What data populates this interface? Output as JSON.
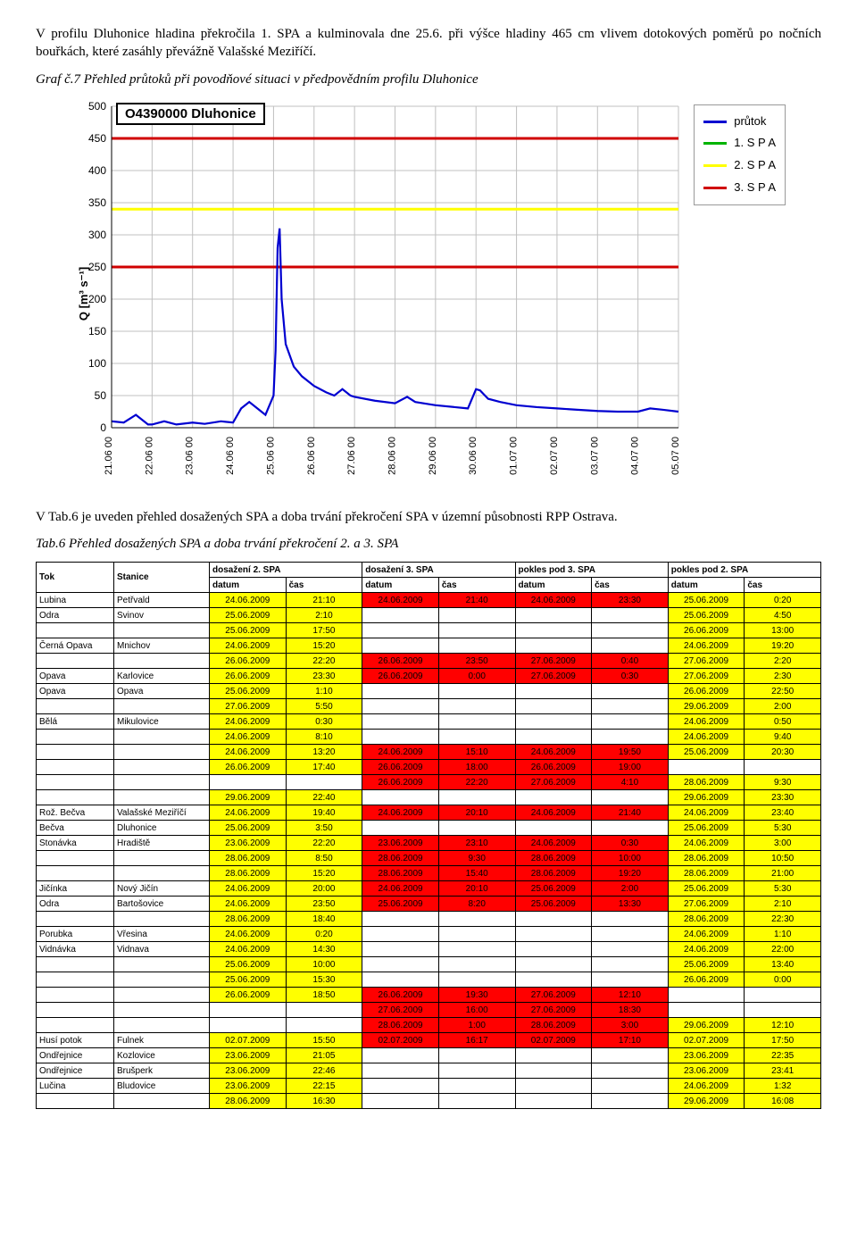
{
  "intro_para": "V profilu Dluhonice hladina překročila 1. SPA a kulminovala dne 25.6. při výšce hladiny 465 cm vlivem dotokových poměrů po nočních bouřkách, které zasáhly převážně Valašské Meziříčí.",
  "chart_caption": "Graf č.7 Přehled průtoků při povodňové situaci v předpovědním profilu Dluhonice",
  "mid_para": "V Tab.6 je uveden přehled dosažených SPA a doba trvání překročení SPA v územní působnosti RPP Ostrava.",
  "table_caption": "Tab.6  Přehled dosažených SPA a doba trvání překročení  2. a 3. SPA",
  "chart": {
    "title": "O4390000 Dluhonice",
    "ylabel": "Q [m³ s⁻¹]",
    "ylim": [
      0,
      500
    ],
    "ytick_step": 50,
    "x_labels": [
      "21.06 00",
      "22.06 00",
      "23.06 00",
      "24.06 00",
      "25.06 00",
      "26.06 00",
      "27.06 00",
      "28.06 00",
      "29.06 00",
      "30.06 00",
      "01.07 00",
      "02.07 00",
      "03.07 00",
      "04.07 00",
      "05.07 00"
    ],
    "spa1": 340,
    "spa2": 450,
    "spa3": 250,
    "colors": {
      "prutok": "#0000d0",
      "spa1": "#00b300",
      "spa2": "#ffff00",
      "spa3": "#d00000",
      "grid": "#c0c0c0",
      "axis": "#000000",
      "bg": "#ffffff"
    },
    "legend": {
      "prutok": "průtok",
      "spa1": "1. S P A",
      "spa2": "2. S P A",
      "spa3": "3. S P A"
    },
    "flow_series": [
      [
        0,
        10
      ],
      [
        0.3,
        8
      ],
      [
        0.6,
        20
      ],
      [
        0.9,
        5
      ],
      [
        1.0,
        5
      ],
      [
        1.3,
        10
      ],
      [
        1.6,
        5
      ],
      [
        2.0,
        8
      ],
      [
        2.3,
        6
      ],
      [
        2.7,
        10
      ],
      [
        3.0,
        8
      ],
      [
        3.2,
        30
      ],
      [
        3.4,
        40
      ],
      [
        3.6,
        30
      ],
      [
        3.8,
        20
      ],
      [
        4.0,
        50
      ],
      [
        4.05,
        120
      ],
      [
        4.1,
        280
      ],
      [
        4.15,
        310
      ],
      [
        4.2,
        200
      ],
      [
        4.3,
        130
      ],
      [
        4.5,
        95
      ],
      [
        4.7,
        80
      ],
      [
        5.0,
        65
      ],
      [
        5.3,
        55
      ],
      [
        5.5,
        50
      ],
      [
        5.7,
        60
      ],
      [
        5.9,
        50
      ],
      [
        6.0,
        48
      ],
      [
        6.5,
        42
      ],
      [
        7.0,
        38
      ],
      [
        7.3,
        48
      ],
      [
        7.5,
        40
      ],
      [
        8.0,
        35
      ],
      [
        8.8,
        30
      ],
      [
        9.0,
        60
      ],
      [
        9.1,
        58
      ],
      [
        9.3,
        45
      ],
      [
        9.6,
        40
      ],
      [
        10.0,
        35
      ],
      [
        10.5,
        32
      ],
      [
        11.0,
        30
      ],
      [
        11.5,
        28
      ],
      [
        12.0,
        26
      ],
      [
        12.5,
        25
      ],
      [
        13.0,
        25
      ],
      [
        13.3,
        30
      ],
      [
        13.6,
        28
      ],
      [
        14.0,
        25
      ]
    ]
  },
  "table": {
    "headers": {
      "tok": "Tok",
      "stanice": "Stanice",
      "d2": "dosažení 2. SPA",
      "d3": "dosažení 3. SPA",
      "p3": "pokles pod 3. SPA",
      "p2": "pokles pod 2. SPA",
      "datum": "datum",
      "cas": "čas"
    },
    "colors": {
      "yellow": "#ffff00",
      "red": "#ff0000",
      "none": "#ffffff"
    },
    "rows": [
      {
        "tok": "Lubina",
        "stn": "Petřvald",
        "d2": [
          "24.06.2009",
          "21:10"
        ],
        "d3": [
          "24.06.2009",
          "21:40"
        ],
        "p3": [
          "24.06.2009",
          "23:30"
        ],
        "p2": [
          "25.06.2009",
          "0:20"
        ]
      },
      {
        "tok": "Odra",
        "stn": "Svinov",
        "d2": [
          "25.06.2009",
          "2:10"
        ],
        "d3": [
          "",
          ""
        ],
        "p3": [
          "",
          ""
        ],
        "p2": [
          "25.06.2009",
          "4:50"
        ]
      },
      {
        "tok": "",
        "stn": "",
        "d2": [
          "25.06.2009",
          "17:50"
        ],
        "d3": [
          "",
          ""
        ],
        "p3": [
          "",
          ""
        ],
        "p2": [
          "26.06.2009",
          "13:00"
        ]
      },
      {
        "tok": "Černá Opava",
        "stn": "Mnichov",
        "d2": [
          "24.06.2009",
          "15:20"
        ],
        "d3": [
          "",
          ""
        ],
        "p3": [
          "",
          ""
        ],
        "p2": [
          "24.06.2009",
          "19:20"
        ]
      },
      {
        "tok": "",
        "stn": "",
        "d2": [
          "26.06.2009",
          "22:20"
        ],
        "d3": [
          "26.06.2009",
          "23:50"
        ],
        "p3": [
          "27.06.2009",
          "0:40"
        ],
        "p2": [
          "27.06.2009",
          "2:20"
        ]
      },
      {
        "tok": "Opava",
        "stn": "Karlovice",
        "d2": [
          "26.06.2009",
          "23:30"
        ],
        "d3": [
          "26.06.2009",
          "0:00"
        ],
        "p3": [
          "27.06.2009",
          "0:30"
        ],
        "p2": [
          "27.06.2009",
          "2:30"
        ]
      },
      {
        "tok": "Opava",
        "stn": "Opava",
        "d2": [
          "25.06.2009",
          "1:10"
        ],
        "d3": [
          "",
          ""
        ],
        "p3": [
          "",
          ""
        ],
        "p2": [
          "26.06.2009",
          "22:50"
        ]
      },
      {
        "tok": "",
        "stn": "",
        "d2": [
          "27.06.2009",
          "5:50"
        ],
        "d3": [
          "",
          ""
        ],
        "p3": [
          "",
          ""
        ],
        "p2": [
          "29.06.2009",
          "2:00"
        ]
      },
      {
        "tok": "Bělá",
        "stn": "Mikulovice",
        "d2": [
          "24.06.2009",
          "0:30"
        ],
        "d3": [
          "",
          ""
        ],
        "p3": [
          "",
          ""
        ],
        "p2": [
          "24.06.2009",
          "0:50"
        ]
      },
      {
        "tok": "",
        "stn": "",
        "d2": [
          "24.06.2009",
          "8:10"
        ],
        "d3": [
          "",
          ""
        ],
        "p3": [
          "",
          ""
        ],
        "p2": [
          "24.06.2009",
          "9:40"
        ]
      },
      {
        "tok": "",
        "stn": "",
        "d2": [
          "24.06.2009",
          "13:20"
        ],
        "d3": [
          "24.06.2009",
          "15:10"
        ],
        "p3": [
          "24.06.2009",
          "19:50"
        ],
        "p2": [
          "25.06.2009",
          "20:30"
        ]
      },
      {
        "tok": "",
        "stn": "",
        "d2": [
          "26.06.2009",
          "17:40"
        ],
        "d3": [
          "26.06.2009",
          "18:00"
        ],
        "p3": [
          "26.06.2009",
          "19:00"
        ],
        "p2": [
          "",
          ""
        ]
      },
      {
        "tok": "",
        "stn": "",
        "d2": [
          "",
          ""
        ],
        "d3": [
          "26.06.2009",
          "22:20"
        ],
        "p3": [
          "27.06.2009",
          "4:10"
        ],
        "p2": [
          "28.06.2009",
          "9:30"
        ]
      },
      {
        "tok": "",
        "stn": "",
        "d2": [
          "29.06.2009",
          "22:40"
        ],
        "d3": [
          "",
          ""
        ],
        "p3": [
          "",
          ""
        ],
        "p2": [
          "29.06.2009",
          "23:30"
        ]
      },
      {
        "tok": "Rož. Bečva",
        "stn": "Valašské Meziříčí",
        "d2": [
          "24.06.2009",
          "19:40"
        ],
        "d3": [
          "24.06.2009",
          "20:10"
        ],
        "p3": [
          "24.06.2009",
          "21:40"
        ],
        "p2": [
          "24.06.2009",
          "23:40"
        ]
      },
      {
        "tok": "Bečva",
        "stn": "Dluhonice",
        "d2": [
          "25.06.2009",
          "3:50"
        ],
        "d3": [
          "",
          ""
        ],
        "p3": [
          "",
          ""
        ],
        "p2": [
          "25.06.2009",
          "5:30"
        ]
      },
      {
        "tok": "Stonávka",
        "stn": "Hradiště",
        "d2": [
          "23.06.2009",
          "22:20"
        ],
        "d3": [
          "23.06.2009",
          "23:10"
        ],
        "p3": [
          "24.06.2009",
          "0:30"
        ],
        "p2": [
          "24.06.2009",
          "3:00"
        ]
      },
      {
        "tok": "",
        "stn": "",
        "d2": [
          "28.06.2009",
          "8:50"
        ],
        "d3": [
          "28.06.2009",
          "9:30"
        ],
        "p3": [
          "28.06.2009",
          "10:00"
        ],
        "p2": [
          "28.06.2009",
          "10:50"
        ]
      },
      {
        "tok": "",
        "stn": "",
        "d2": [
          "28.06.2009",
          "15:20"
        ],
        "d3": [
          "28.06.2009",
          "15:40"
        ],
        "p3": [
          "28.06.2009",
          "19:20"
        ],
        "p2": [
          "28.06.2009",
          "21:00"
        ]
      },
      {
        "tok": "Jičínka",
        "stn": "Nový Jičín",
        "d2": [
          "24.06.2009",
          "20:00"
        ],
        "d3": [
          "24.06.2009",
          "20:10"
        ],
        "p3": [
          "25.06.2009",
          "2:00"
        ],
        "p2": [
          "25.06.2009",
          "5:30"
        ]
      },
      {
        "tok": "Odra",
        "stn": "Bartošovice",
        "d2": [
          "24.06.2009",
          "23:50"
        ],
        "d3": [
          "25.06.2009",
          "8:20"
        ],
        "p3": [
          "25.06.2009",
          "13:30"
        ],
        "p2": [
          "27.06.2009",
          "2:10"
        ]
      },
      {
        "tok": "",
        "stn": "",
        "d2": [
          "28.06.2009",
          "18:40"
        ],
        "d3": [
          "",
          ""
        ],
        "p3": [
          "",
          ""
        ],
        "p2": [
          "28.06.2009",
          "22:30"
        ]
      },
      {
        "tok": "Porubka",
        "stn": "Vřesina",
        "d2": [
          "24.06.2009",
          "0:20"
        ],
        "d3": [
          "",
          ""
        ],
        "p3": [
          "",
          ""
        ],
        "p2": [
          "24.06.2009",
          "1:10"
        ]
      },
      {
        "tok": "Vidnávka",
        "stn": "Vidnava",
        "d2": [
          "24.06.2009",
          "14:30"
        ],
        "d3": [
          "",
          ""
        ],
        "p3": [
          "",
          ""
        ],
        "p2": [
          "24.06.2009",
          "22:00"
        ]
      },
      {
        "tok": "",
        "stn": "",
        "d2": [
          "25.06.2009",
          "10:00"
        ],
        "d3": [
          "",
          ""
        ],
        "p3": [
          "",
          ""
        ],
        "p2": [
          "25.06.2009",
          "13:40"
        ]
      },
      {
        "tok": "",
        "stn": "",
        "d2": [
          "25.06.2009",
          "15:30"
        ],
        "d3": [
          "",
          ""
        ],
        "p3": [
          "",
          ""
        ],
        "p2": [
          "26.06.2009",
          "0:00"
        ]
      },
      {
        "tok": "",
        "stn": "",
        "d2": [
          "26.06.2009",
          "18:50"
        ],
        "d3": [
          "26.06.2009",
          "19:30"
        ],
        "p3": [
          "27.06.2009",
          "12:10"
        ],
        "p2": [
          "",
          ""
        ]
      },
      {
        "tok": "",
        "stn": "",
        "d2": [
          "",
          ""
        ],
        "d3": [
          "27.06.2009",
          "16:00"
        ],
        "p3": [
          "27.06.2009",
          "18:30"
        ],
        "p2": [
          "",
          ""
        ]
      },
      {
        "tok": "",
        "stn": "",
        "d2": [
          "",
          ""
        ],
        "d3": [
          "28.06.2009",
          "1:00"
        ],
        "p3": [
          "28.06.2009",
          "3:00"
        ],
        "p2": [
          "29.06.2009",
          "12:10"
        ]
      },
      {
        "tok": "Husí potok",
        "stn": "Fulnek",
        "d2": [
          "02.07.2009",
          "15:50"
        ],
        "d3": [
          "02.07.2009",
          "16:17"
        ],
        "p3": [
          "02.07.2009",
          "17:10"
        ],
        "p2": [
          "02.07.2009",
          "17:50"
        ]
      },
      {
        "tok": "Ondřejnice",
        "stn": "Kozlovice",
        "d2": [
          "23.06.2009",
          "21:05"
        ],
        "d3": [
          "",
          ""
        ],
        "p3": [
          "",
          ""
        ],
        "p2": [
          "23.06.2009",
          "22:35"
        ]
      },
      {
        "tok": "Ondřejnice",
        "stn": "Brušperk",
        "d2": [
          "23.06.2009",
          "22:46"
        ],
        "d3": [
          "",
          ""
        ],
        "p3": [
          "",
          ""
        ],
        "p2": [
          "23.06.2009",
          "23:41"
        ]
      },
      {
        "tok": "Lučina",
        "stn": "Bludovice",
        "d2": [
          "23.06.2009",
          "22:15"
        ],
        "d3": [
          "",
          ""
        ],
        "p3": [
          "",
          ""
        ],
        "p2": [
          "24.06.2009",
          "1:32"
        ]
      },
      {
        "tok": "",
        "stn": "",
        "d2": [
          "28.06.2009",
          "16:30"
        ],
        "d3": [
          "",
          ""
        ],
        "p3": [
          "",
          ""
        ],
        "p2": [
          "29.06.2009",
          "16:08"
        ]
      }
    ]
  }
}
